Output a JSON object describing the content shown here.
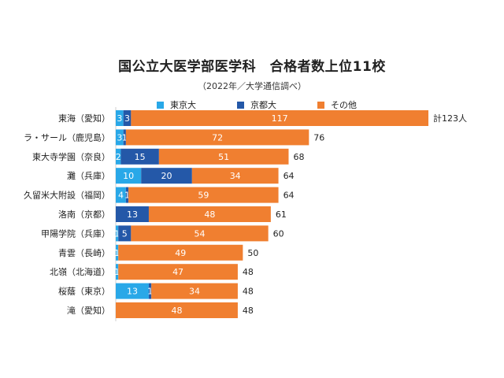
{
  "colors": {
    "tokyo": "#29a8e8",
    "kyoto": "#2458a8",
    "other": "#f07f30",
    "axis": "#cfcfcf",
    "barText": "#ffffff"
  },
  "chart_data": {
    "type": "bar",
    "orientation": "horizontal",
    "stacked": true,
    "title": "国公立大医学部医学科　合格者数上位11校",
    "subtitle": "（2022年／大学通信調べ）",
    "categories": [
      "東海（愛知）",
      "ラ・サール（鹿児島）",
      "東大寺学園（奈良）",
      "灘（兵庫）",
      "久留米大附設（福岡）",
      "洛南（京都）",
      "甲陽学院（兵庫）",
      "青雲（長崎）",
      "北嶺（北海道）",
      "桜蔭（東京）",
      "滝（愛知）"
    ],
    "series": [
      {
        "name": "東京大",
        "color": "#29a8e8",
        "values": [
          3,
          3,
          2,
          10,
          4,
          0,
          1,
          1,
          1,
          13,
          0
        ]
      },
      {
        "name": "京都大",
        "color": "#2458a8",
        "values": [
          3,
          1,
          15,
          20,
          1,
          13,
          5,
          0,
          0,
          1,
          0
        ]
      },
      {
        "name": "その他",
        "color": "#f07f30",
        "values": [
          117,
          72,
          51,
          34,
          59,
          48,
          54,
          49,
          47,
          34,
          48
        ]
      }
    ],
    "segment_labels": [
      [
        "3",
        "3",
        "117"
      ],
      [
        "3",
        "1",
        "72"
      ],
      [
        "2",
        "15",
        "51"
      ],
      [
        "10",
        "20",
        "34"
      ],
      [
        "4",
        "1",
        "59"
      ],
      [
        "",
        "13",
        "48"
      ],
      [
        "1",
        "5",
        "54"
      ],
      [
        "1",
        "",
        "49"
      ],
      [
        "1",
        "",
        "47"
      ],
      [
        "13",
        "1",
        "34"
      ],
      [
        "",
        "",
        "48"
      ]
    ],
    "totals": [
      123,
      76,
      68,
      64,
      64,
      61,
      60,
      50,
      48,
      48,
      48
    ],
    "total_labels": [
      "計123人",
      "76",
      "68",
      "64",
      "64",
      "61",
      "60",
      "50",
      "48",
      "48",
      "48"
    ],
    "xlim": [
      0,
      123
    ],
    "legend_position": "top"
  }
}
